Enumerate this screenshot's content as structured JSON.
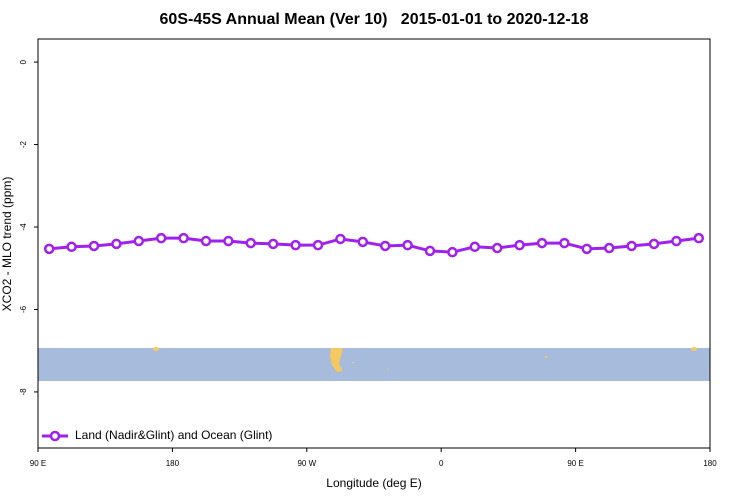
{
  "chart_data": {
    "type": "line",
    "title": "60S-45S Annual Mean (Ver 10)   2015-01-01 to 2020-12-18",
    "x_label": "Longitude (deg E)",
    "y_label": "XCO2 - MLO trend (ppm)",
    "xlim": [
      90,
      540
    ],
    "ylim": [
      -9.36,
      0.56
    ],
    "xticks": [
      {
        "value": 90,
        "label": "90 E"
      },
      180,
      {
        "value": 270,
        "label": "90 W"
      },
      {
        "value": 360,
        "label": "0"
      },
      {
        "value": 450,
        "label": "90 E"
      },
      {
        "value": 540,
        "label": "180"
      }
    ],
    "yticks": [
      0,
      -2,
      -4,
      -6,
      -8
    ],
    "legend": "bottom-left",
    "x": [
      97.5,
      112.5,
      127.5,
      142.5,
      157.5,
      172.5,
      187.5,
      202.5,
      217.5,
      232.5,
      247.5,
      262.5,
      277.5,
      292.5,
      307.5,
      322.5,
      337.5,
      352.5,
      367.5,
      382.5,
      397.5,
      412.5,
      427.5,
      442.5,
      457.5,
      472.5,
      487.5,
      502.5,
      517.5,
      532.5
    ],
    "series": [
      {
        "name": "Land (Nadir&Glint) and Ocean (Glint)",
        "color": "#a020f0",
        "values": [
          -4.53,
          -4.48,
          -4.46,
          -4.41,
          -4.34,
          -4.27,
          -4.27,
          -4.34,
          -4.34,
          -4.39,
          -4.41,
          -4.44,
          -4.44,
          -4.29,
          -4.36,
          -4.46,
          -4.44,
          -4.58,
          -4.61,
          -4.48,
          -4.51,
          -4.44,
          -4.39,
          -4.39,
          -4.53,
          -4.51,
          -4.46,
          -4.41,
          -4.34,
          -4.27
        ]
      }
    ]
  }
}
